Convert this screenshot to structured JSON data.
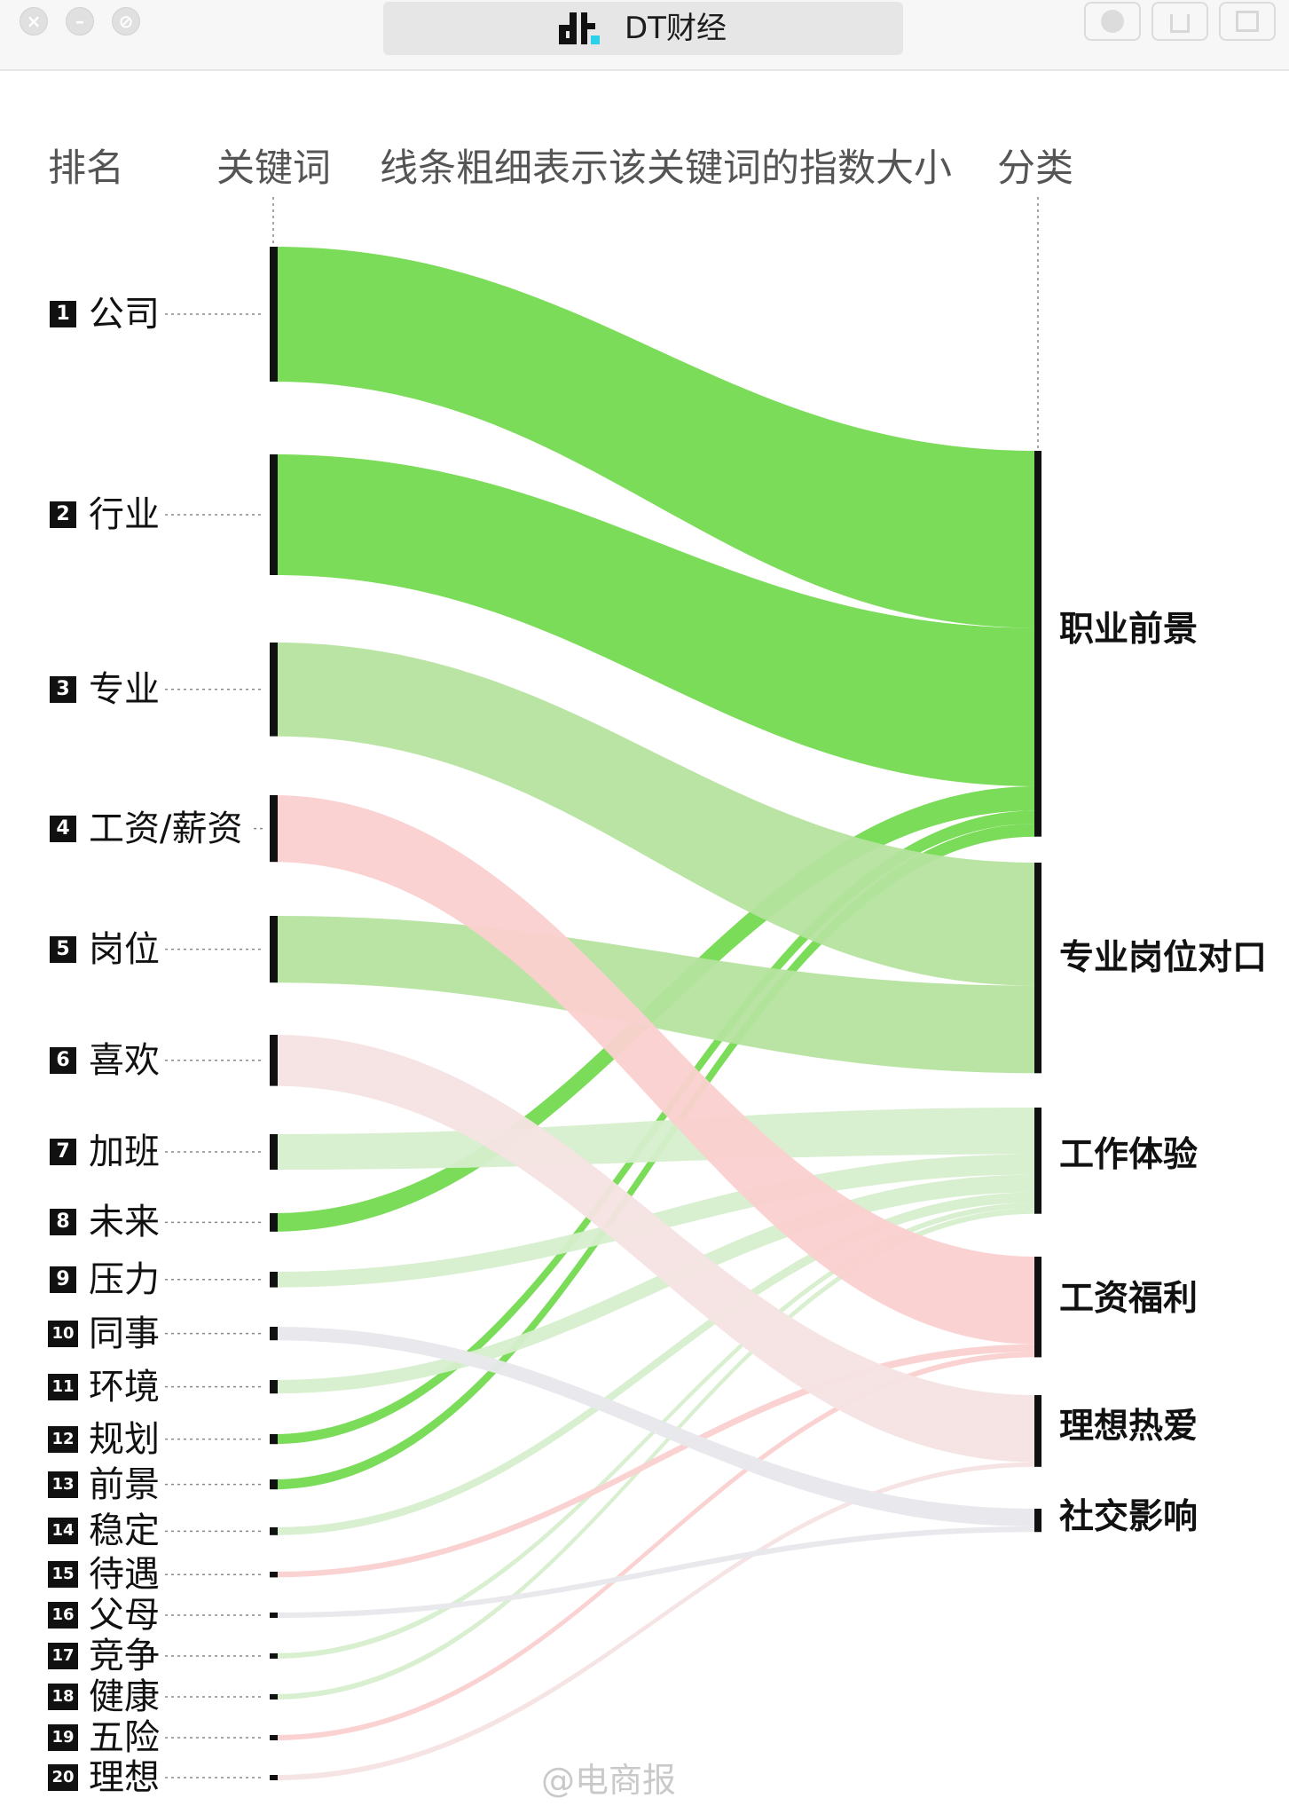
{
  "window": {
    "tab_title": "DT财经",
    "logo_icon": "dt-logo-icon",
    "controls": [
      "close-icon",
      "minimize-icon",
      "fullscreen-icon"
    ],
    "toolbar_icons": [
      "record-icon",
      "share-icon",
      "window-icon"
    ]
  },
  "headers": {
    "rank": "排名",
    "keyword": "关键词",
    "note": "线条粗细表示该关键词的指数大小",
    "category": "分类"
  },
  "colors": {
    "career": "#6fd94a",
    "career_light": "#b5e39f",
    "work": "#d6eecd",
    "salary": "#fbd0d0",
    "ideal": "#f6e3e3",
    "social": "#e8e8ec",
    "bar": "#111111"
  },
  "categories": [
    {
      "id": "career",
      "label": "职业前景"
    },
    {
      "id": "match",
      "label": "专业岗位对口"
    },
    {
      "id": "work",
      "label": "工作体验"
    },
    {
      "id": "salary",
      "label": "工资福利"
    },
    {
      "id": "ideal",
      "label": "理想热爱"
    },
    {
      "id": "social",
      "label": "社交影响"
    }
  ],
  "keywords": [
    {
      "rank": "1",
      "label": "公司",
      "category": "career",
      "weight": 190
    },
    {
      "rank": "2",
      "label": "行业",
      "category": "career",
      "weight": 170
    },
    {
      "rank": "3",
      "label": "专业",
      "category": "match",
      "weight": 132
    },
    {
      "rank": "4",
      "label": "工资/薪资",
      "category": "salary",
      "weight": 94
    },
    {
      "rank": "5",
      "label": "岗位",
      "category": "match",
      "weight": 94
    },
    {
      "rank": "6",
      "label": "喜欢",
      "category": "ideal",
      "weight": 72
    },
    {
      "rank": "7",
      "label": "加班",
      "category": "work",
      "weight": 50
    },
    {
      "rank": "8",
      "label": "未来",
      "category": "career",
      "weight": 26
    },
    {
      "rank": "9",
      "label": "压力",
      "category": "work",
      "weight": 22
    },
    {
      "rank": "10",
      "label": "同事",
      "category": "social",
      "weight": 19
    },
    {
      "rank": "11",
      "label": "环境",
      "category": "work",
      "weight": 19
    },
    {
      "rank": "12",
      "label": "规划",
      "category": "career",
      "weight": 14
    },
    {
      "rank": "13",
      "label": "前景",
      "category": "career",
      "weight": 14
    },
    {
      "rank": "14",
      "label": "稳定",
      "category": "work",
      "weight": 11
    },
    {
      "rank": "15",
      "label": "待遇",
      "category": "salary",
      "weight": 8
    },
    {
      "rank": "16",
      "label": "父母",
      "category": "social",
      "weight": 6
    },
    {
      "rank": "17",
      "label": "竞争",
      "category": "work",
      "weight": 6
    },
    {
      "rank": "18",
      "label": "健康",
      "category": "work",
      "weight": 6
    },
    {
      "rank": "19",
      "label": "五险",
      "category": "salary",
      "weight": 6
    },
    {
      "rank": "20",
      "label": "理想",
      "category": "ideal",
      "weight": 5
    }
  ],
  "watermark": "@电商报"
}
